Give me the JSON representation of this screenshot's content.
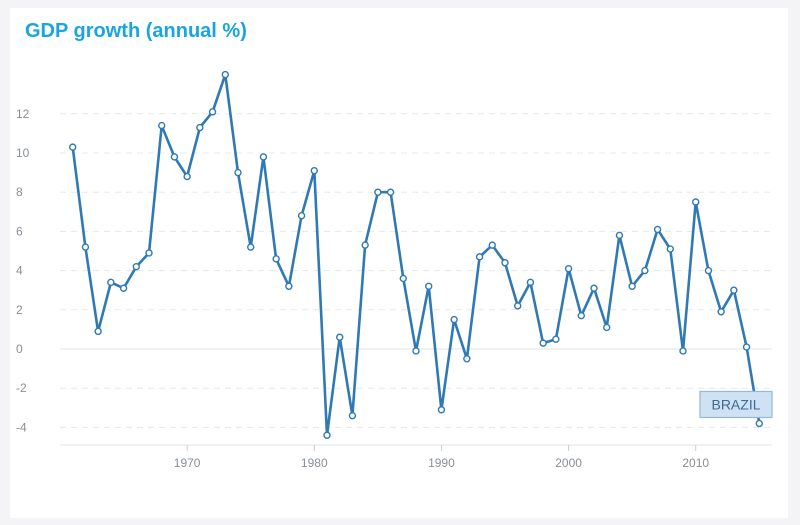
{
  "chart_data": {
    "type": "line",
    "title": "GDP growth (annual %)",
    "xlabel": "",
    "ylabel": "",
    "xlim": [
      1960,
      2016
    ],
    "ylim": [
      -5,
      14
    ],
    "x_ticks": [
      1970,
      1980,
      1990,
      2000,
      2010
    ],
    "y_ticks": [
      -4,
      -2,
      0,
      2,
      4,
      6,
      8,
      10,
      12
    ],
    "grid": "horizontal-dashed",
    "series": [
      {
        "name": "BRAZIL",
        "color": "#2f79b5",
        "x": [
          1961,
          1962,
          1963,
          1964,
          1965,
          1966,
          1967,
          1968,
          1969,
          1970,
          1971,
          1972,
          1973,
          1974,
          1975,
          1976,
          1977,
          1978,
          1979,
          1980,
          1981,
          1982,
          1983,
          1984,
          1985,
          1986,
          1987,
          1988,
          1989,
          1990,
          1991,
          1992,
          1993,
          1994,
          1995,
          1996,
          1997,
          1998,
          1999,
          2000,
          2001,
          2002,
          2003,
          2004,
          2005,
          2006,
          2007,
          2008,
          2009,
          2010,
          2011,
          2012,
          2013,
          2014,
          2015
        ],
        "values": [
          10.3,
          5.2,
          0.9,
          3.4,
          3.1,
          4.2,
          4.9,
          11.4,
          9.8,
          8.8,
          11.3,
          12.1,
          14.0,
          9.0,
          5.2,
          9.8,
          4.6,
          3.2,
          6.8,
          9.1,
          -4.4,
          0.6,
          -3.4,
          5.3,
          8.0,
          8.0,
          3.6,
          -0.1,
          3.2,
          -3.1,
          1.5,
          -0.5,
          4.7,
          5.3,
          4.4,
          2.2,
          3.4,
          0.3,
          0.5,
          4.1,
          1.7,
          3.1,
          1.1,
          5.8,
          3.2,
          4.0,
          6.1,
          5.1,
          -0.1,
          7.5,
          4.0,
          1.9,
          3.0,
          0.1,
          -3.8
        ]
      }
    ]
  }
}
